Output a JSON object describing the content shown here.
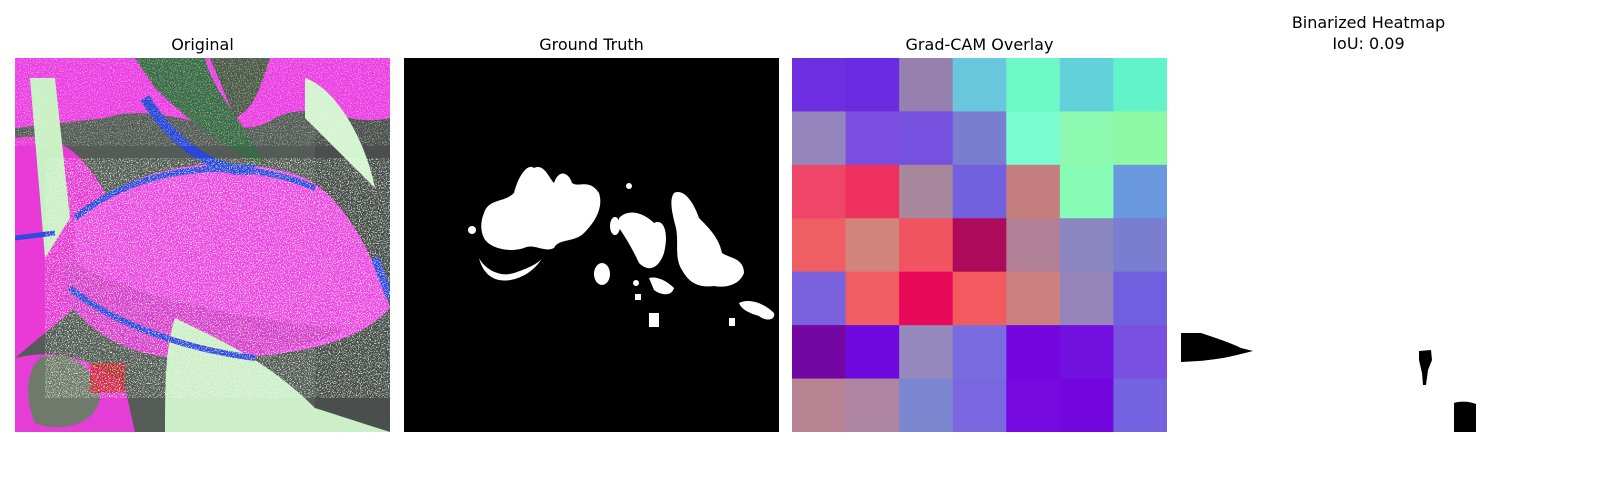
{
  "panels": [
    {
      "title": "Original"
    },
    {
      "title": "Ground Truth"
    },
    {
      "title": "Grad-CAM Overlay"
    },
    {
      "title": "Binarized Heatmap",
      "subtitle": "IoU: 0.09"
    }
  ],
  "gradcam_grid": [
    [
      "#6e2fe0",
      "#6a2ce0",
      "#9580ae",
      "#6ac6dc",
      "#6ef8c8",
      "#62d2da",
      "#62f4c8"
    ],
    [
      "#9585bd",
      "#7b4ee0",
      "#7650df",
      "#7a7ed0",
      "#78fcd0",
      "#8ef9b0",
      "#8ef9a4"
    ],
    [
      "#ef4566",
      "#ef2f5c",
      "#a8869c",
      "#7260df",
      "#c47e7e",
      "#86fcb6",
      "#6a98e0"
    ],
    [
      "#ef5e62",
      "#d2847c",
      "#f05461",
      "#ae0a5c",
      "#b28096",
      "#8c86c0",
      "#7a7ed0"
    ],
    [
      "#7a62df",
      "#f05e62",
      "#e80a58",
      "#f25a60",
      "#cd8080",
      "#9484b8",
      "#7060df"
    ],
    [
      "#7406a4",
      "#7008e0",
      "#9488bc",
      "#7a6ce0",
      "#7406e0",
      "#7210e0",
      "#7a50e0"
    ],
    [
      "#b88494",
      "#ae86a4",
      "#7a86d0",
      "#7a66e0",
      "#7608e0",
      "#7406e0",
      "#7462e0"
    ]
  ]
}
